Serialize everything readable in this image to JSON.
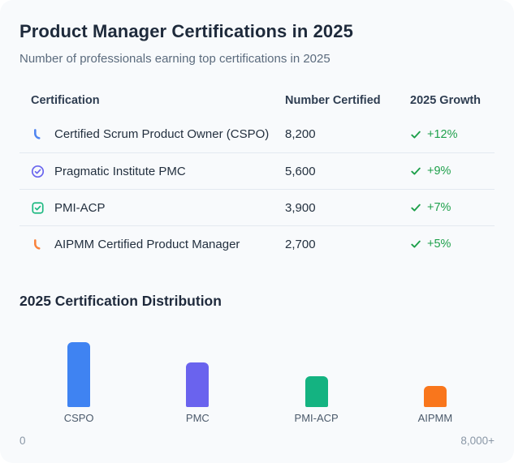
{
  "card": {
    "title": "Product Manager Certifications in 2025",
    "subtitle": "Number of professionals earning top certifications in 2025"
  },
  "table": {
    "columns": {
      "certification": "Certification",
      "number_certified": "Number Certified",
      "growth": "2025 Growth"
    },
    "rows": [
      {
        "icon": "arc-icon",
        "icon_color": "#4e84f0",
        "name": "Certified Scrum Product Owner (CSPO)",
        "certified": "8,200",
        "growth": "+12%"
      },
      {
        "icon": "check-circle-icon",
        "icon_color": "#6a66ee",
        "name": "Pragmatic Institute PMC",
        "certified": "5,600",
        "growth": "+9%"
      },
      {
        "icon": "check-square-icon",
        "icon_color": "#1db981",
        "name": "PMI-ACP",
        "certified": "3,900",
        "growth": "+7%"
      },
      {
        "icon": "arc-icon",
        "icon_color": "#f9823c",
        "name": "AIPMM Certified Product Manager",
        "certified": "2,700",
        "growth": "+5%"
      }
    ]
  },
  "section": {
    "title": "2025 Certification Distribution"
  },
  "chart": {
    "axis_min_label": "0",
    "axis_max_label": "8,000+"
  },
  "chart_data": {
    "type": "bar",
    "title": "2025 Certification Distribution",
    "categories": [
      "CSPO",
      "PMC",
      "PMI-ACP",
      "AIPMM"
    ],
    "values": [
      8200,
      5600,
      3900,
      2700
    ],
    "colors": [
      "#3f83f2",
      "#6a63ee",
      "#14b381",
      "#f9761c"
    ],
    "xlabel": "",
    "ylabel": "",
    "value_range": [
      0,
      8200
    ],
    "axis_labels": [
      "0",
      "8,000+"
    ],
    "legend": false,
    "grid": false
  },
  "colors": {
    "growth_green": "#1ea04b",
    "card_bg": "#f8fafc",
    "separator": "#e3e9f0"
  }
}
